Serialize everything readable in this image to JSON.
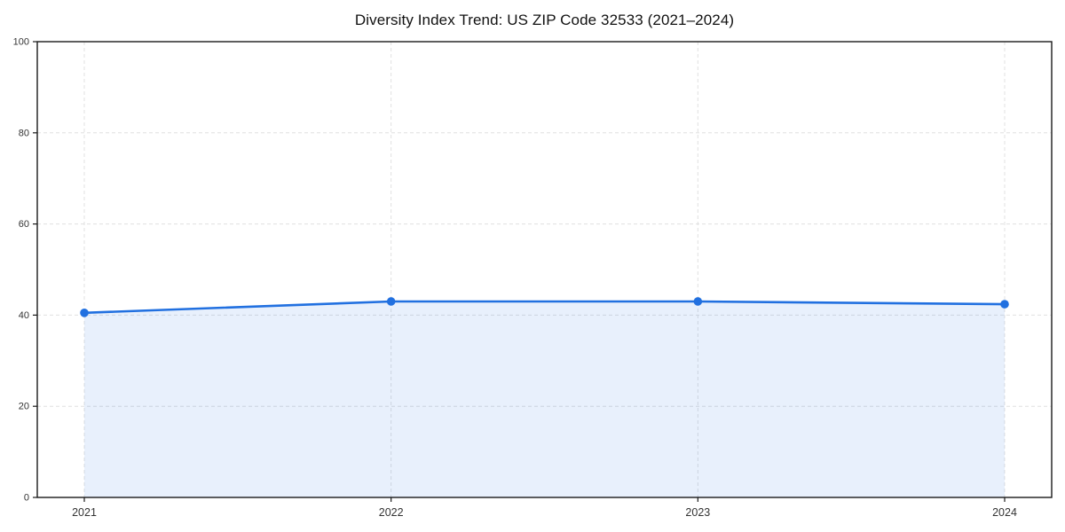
{
  "chart_data": {
    "type": "area",
    "title": "Diversity Index Trend: US ZIP Code 32533 (2021–2024)",
    "categories": [
      "2021",
      "2022",
      "2023",
      "2024"
    ],
    "series": [
      {
        "name": "Diversity Index",
        "values": [
          40.5,
          43.0,
          43.0,
          42.4
        ]
      }
    ],
    "xlabel": "",
    "ylabel": "",
    "ylim": [
      0,
      100
    ],
    "yticks": [
      0,
      20,
      40,
      60,
      80,
      100
    ],
    "grid": {
      "style": "dashed",
      "axes": "both"
    },
    "legend": "none",
    "colors": {
      "line": "#2170e0",
      "marker": "#2170e0",
      "fill": "#2170e0",
      "fill_opacity": 0.1,
      "grid": "#e0e0e0",
      "axis": "#1a1a1a",
      "tick_label": "#333333",
      "title": "#111111",
      "background": "#ffffff"
    }
  }
}
